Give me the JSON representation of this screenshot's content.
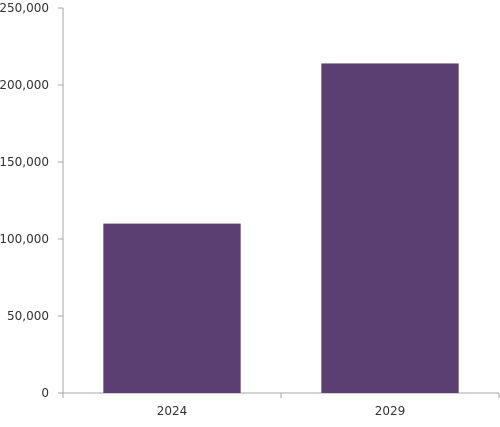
{
  "chart_data": {
    "type": "bar",
    "title": "",
    "xlabel": "",
    "ylabel": "",
    "categories": [
      "2024",
      "2029"
    ],
    "values": [
      110000,
      214000
    ],
    "ylim": [
      0,
      250000
    ],
    "yticks": [
      0,
      50000,
      100000,
      150000,
      200000,
      250000
    ],
    "ytick_labels": [
      "0",
      "50,000",
      "100,000",
      "150,000",
      "200,000",
      "250,000"
    ],
    "grid": false,
    "legend": "none",
    "bar_color": "#5c3f72",
    "axis_color": "#a6a6a6"
  }
}
